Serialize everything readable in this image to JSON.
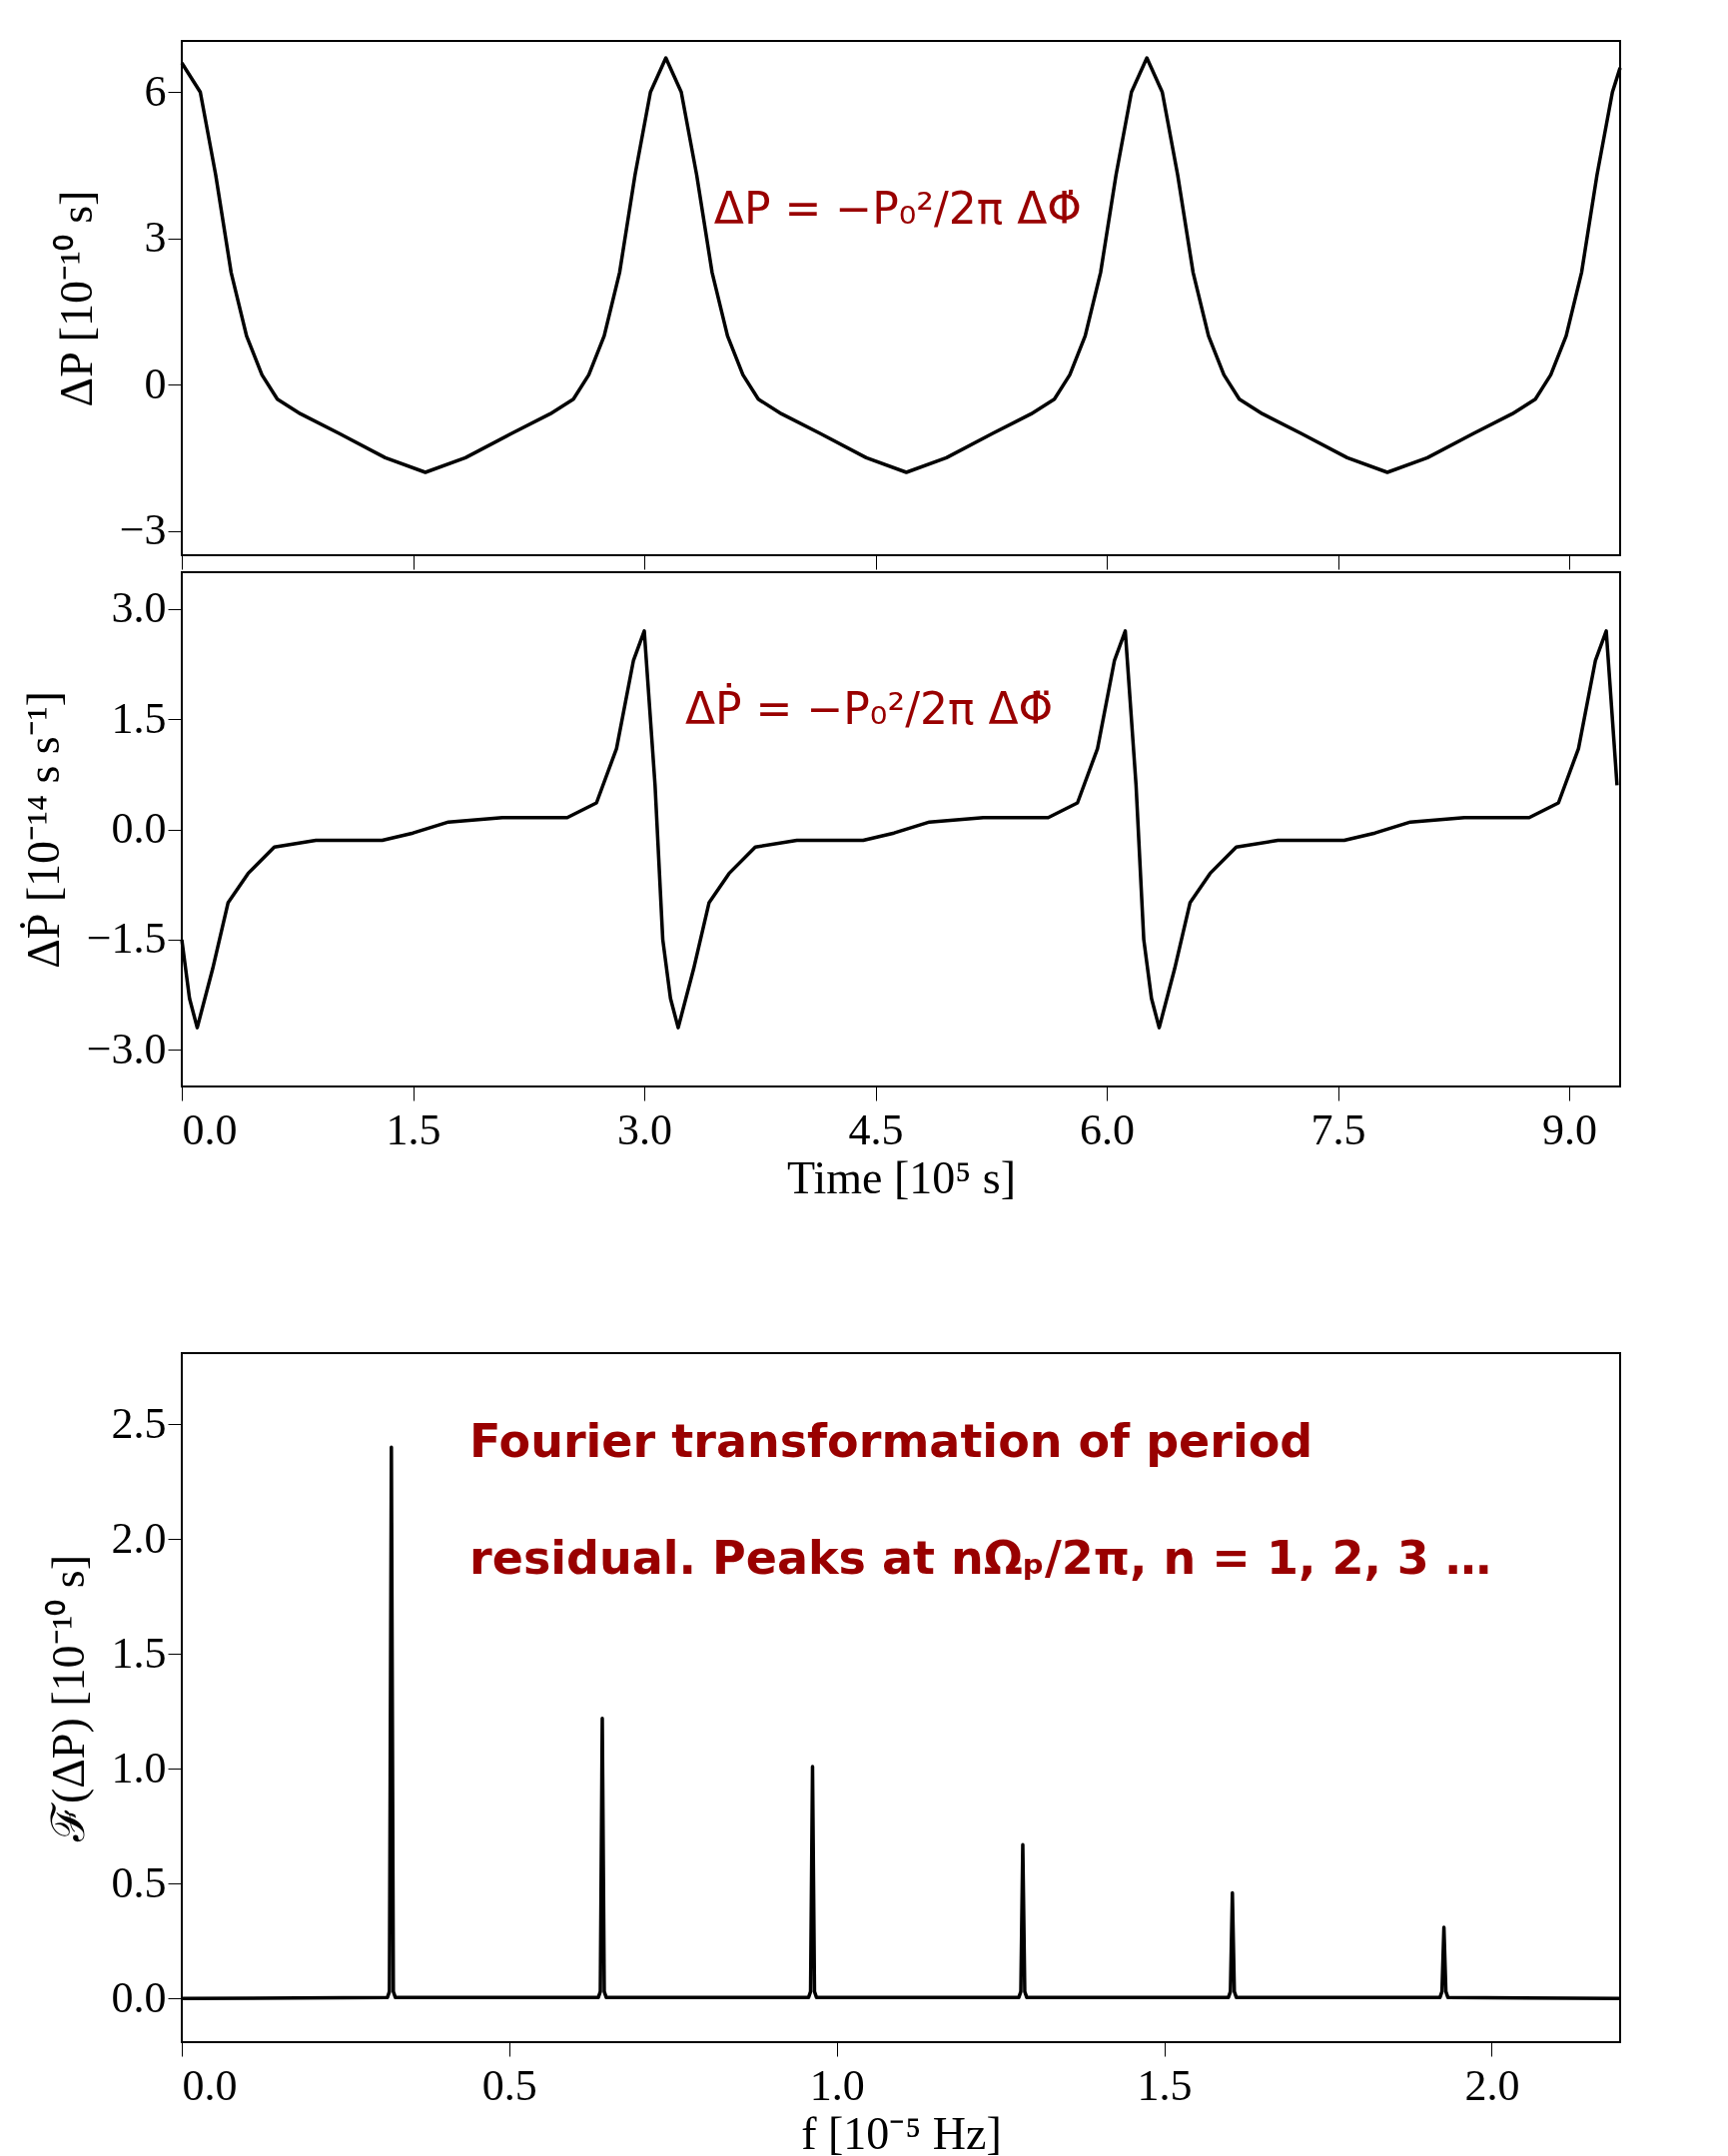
{
  "chart_data": [
    {
      "type": "line",
      "ylabel": "ΔP [10⁻¹⁰ s]",
      "xlim": [
        0,
        9.33
      ],
      "ylim": [
        -3.5,
        7.05
      ],
      "grid": false,
      "tick_labels": "y",
      "xticks": [
        0,
        1.5,
        3,
        4.5,
        6,
        7.5,
        9
      ],
      "yticks": [
        {
          "value": -3,
          "label": "−3"
        },
        0,
        3,
        6
      ],
      "annotations": [
        "ΔP = −P₀²/2π ΔΦ̇"
      ],
      "series": [
        {
          "color": "#000000",
          "x": [
            0,
            0.12,
            0.22,
            0.32,
            0.42,
            0.52,
            0.62,
            0.77,
            1.02,
            1.32,
            1.58,
            1.84,
            2.14,
            2.39,
            2.54,
            2.64,
            2.74,
            2.84,
            2.94,
            3.04,
            3.14,
            3.24,
            3.34,
            3.44,
            3.54,
            3.64,
            3.74,
            3.89,
            4.14,
            4.44,
            4.7,
            4.96,
            5.26,
            5.51,
            5.66,
            5.76,
            5.86,
            5.96,
            6.06,
            6.16,
            6.26,
            6.36,
            6.46,
            6.56,
            6.66,
            6.76,
            6.86,
            7.01,
            7.26,
            7.56,
            7.82,
            8.08,
            8.38,
            8.63,
            8.78,
            8.88,
            8.98,
            9.08,
            9.18,
            9.28,
            9.33
          ],
          "values": [
            6.6,
            6.0,
            4.3,
            2.3,
            1.0,
            0.2,
            -0.3,
            -0.6,
            -1.0,
            -1.5,
            -1.8,
            -1.5,
            -1.0,
            -0.6,
            -0.3,
            0.2,
            1.0,
            2.3,
            4.3,
            6.0,
            6.7,
            6.0,
            4.3,
            2.3,
            1.0,
            0.2,
            -0.3,
            -0.6,
            -1.0,
            -1.5,
            -1.8,
            -1.5,
            -1.0,
            -0.6,
            -0.3,
            0.2,
            1.0,
            2.3,
            4.3,
            6.0,
            6.7,
            6.0,
            4.3,
            2.3,
            1.0,
            0.2,
            -0.3,
            -0.6,
            -1.0,
            -1.5,
            -1.8,
            -1.5,
            -1.0,
            -0.6,
            -0.3,
            0.2,
            1.0,
            2.3,
            4.3,
            6.0,
            6.5
          ]
        }
      ]
    },
    {
      "type": "line",
      "xlabel": "Time [10⁵ s]",
      "ylabel": "ΔṖ [10⁻¹⁴ s s⁻¹]",
      "xlim": [
        0,
        9.33
      ],
      "ylim": [
        -3.5,
        3.5
      ],
      "grid": false,
      "xticks": [
        {
          "value": 0,
          "label": "0.0"
        },
        1.5,
        {
          "value": 3,
          "label": "3.0"
        },
        4.5,
        {
          "value": 6,
          "label": "6.0"
        },
        7.5,
        {
          "value": 9,
          "label": "9.0"
        }
      ],
      "yticks": [
        {
          "value": -3,
          "label": "−3.0"
        },
        {
          "value": -1.5,
          "label": "−1.5"
        },
        {
          "value": 0,
          "label": "0.0"
        },
        1.5,
        {
          "value": 3,
          "label": "3.0"
        }
      ],
      "annotations": [
        "ΔṖ = −P₀²/2π ΔΦ̈"
      ],
      "series": [
        {
          "color": "#000000",
          "x": [
            0,
            0.05,
            0.1,
            0.2,
            0.3,
            0.43,
            0.6,
            0.87,
            1.3,
            1.5,
            1.73,
            2.08,
            2.5,
            2.69,
            2.82,
            2.93,
            3.0,
            3.07,
            3.12,
            3.17,
            3.22,
            3.32,
            3.42,
            3.55,
            3.72,
            3.99,
            4.42,
            4.62,
            4.85,
            5.2,
            5.62,
            5.81,
            5.94,
            6.05,
            6.12,
            6.19,
            6.24,
            6.29,
            6.34,
            6.44,
            6.54,
            6.67,
            6.84,
            7.11,
            7.54,
            7.74,
            7.97,
            8.32,
            8.74,
            8.93,
            9.06,
            9.17,
            9.24,
            9.31
          ],
          "values": [
            -1.5,
            -2.3,
            -2.7,
            -1.9,
            -1.0,
            -0.6,
            -0.24,
            -0.15,
            -0.15,
            -0.05,
            0.1,
            0.16,
            0.16,
            0.36,
            1.1,
            2.3,
            2.7,
            0.6,
            -1.5,
            -2.3,
            -2.7,
            -1.9,
            -1.0,
            -0.6,
            -0.24,
            -0.15,
            -0.15,
            -0.05,
            0.1,
            0.16,
            0.16,
            0.36,
            1.1,
            2.3,
            2.7,
            0.6,
            -1.5,
            -2.3,
            -2.7,
            -1.9,
            -1.0,
            -0.6,
            -0.24,
            -0.15,
            -0.15,
            -0.05,
            0.1,
            0.16,
            0.16,
            0.36,
            1.1,
            2.3,
            2.7,
            0.6
          ]
        }
      ]
    },
    {
      "type": "line",
      "xlabel": "f [10⁻⁵ Hz]",
      "ylabel": "ℱ(ΔP) [10⁻¹⁰ s]",
      "xlim": [
        0,
        2.196
      ],
      "ylim": [
        -0.19,
        2.81
      ],
      "grid": false,
      "xticks": [
        {
          "value": 0,
          "label": "0.0"
        },
        0.5,
        {
          "value": 1,
          "label": "1.0"
        },
        1.5,
        {
          "value": 2,
          "label": "2.0"
        }
      ],
      "yticks": [
        {
          "value": 0,
          "label": "0.0"
        },
        0.5,
        {
          "value": 1,
          "label": "1.0"
        },
        1.5,
        {
          "value": 2,
          "label": "2.0"
        },
        2.5
      ],
      "annotations": [
        "Fourier transformation of period",
        "residual. Peaks at nΩₚ/2π,  n = 1, 2, 3 …"
      ],
      "series": [
        {
          "color": "#000000",
          "x": [
            0,
            0.314,
            0.317,
            0.32,
            0.323,
            0.326,
            0.636,
            0.639,
            0.642,
            0.645,
            0.648,
            0.957,
            0.96,
            0.963,
            0.966,
            0.969,
            1.278,
            1.281,
            1.284,
            1.287,
            1.29,
            1.598,
            1.601,
            1.604,
            1.607,
            1.61,
            1.921,
            1.924,
            1.927,
            1.93,
            1.933,
            2.196
          ],
          "values": [
            0,
            0.005,
            0.03,
            2.4,
            0.03,
            0.005,
            0.005,
            0.03,
            1.22,
            0.03,
            0.005,
            0.005,
            0.03,
            1.01,
            0.03,
            0.005,
            0.005,
            0.03,
            0.67,
            0.03,
            0.005,
            0.005,
            0.03,
            0.46,
            0.03,
            0.005,
            0.005,
            0.03,
            0.31,
            0.03,
            0.005,
            0
          ]
        }
      ]
    }
  ]
}
